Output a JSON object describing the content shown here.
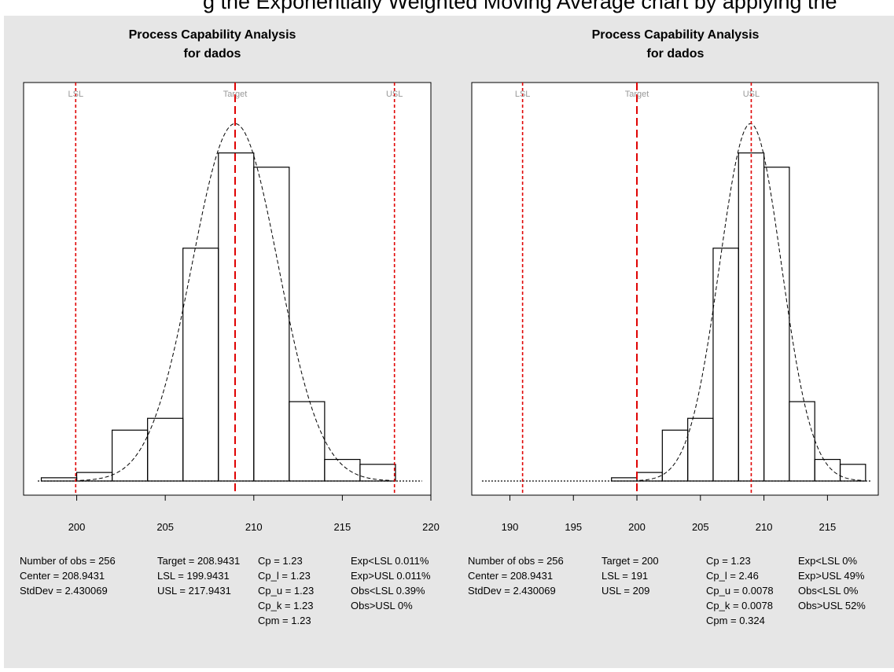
{
  "caption": "g the Exponentially Weighted Moving Average chart by applying the",
  "colors": {
    "background": "#e6e6e6",
    "plot_bg": "#ffffff",
    "spec_line": "#e00000",
    "bars": "#000000",
    "curve": "#000000"
  },
  "chart_data": [
    {
      "type": "bar",
      "title": "Process Capability Analysis",
      "subtitle": "for dados",
      "xlim": [
        197,
        220
      ],
      "xticks": [
        200,
        205,
        210,
        215,
        220
      ],
      "bins": [
        [
          198,
          200
        ],
        [
          200,
          202
        ],
        [
          202,
          204
        ],
        [
          204,
          206
        ],
        [
          206,
          208
        ],
        [
          208,
          210
        ],
        [
          210,
          212
        ],
        [
          212,
          214
        ],
        [
          214,
          216
        ],
        [
          216,
          218
        ]
      ],
      "values": [
        0.008,
        0.021,
        0.125,
        0.154,
        0.572,
        0.806,
        0.771,
        0.195,
        0.053,
        0.041
      ],
      "ylim": [
        0,
        0.95
      ],
      "normal_curve": {
        "mean": 208.9431,
        "sd": 2.430069
      },
      "spec_lines": [
        {
          "label": "LSL",
          "value": 199.9431
        },
        {
          "label": "Target",
          "value": 208.9431
        },
        {
          "label": "USL",
          "value": 217.9431
        }
      ],
      "stats": [
        [
          "Number of obs = 256",
          "Center = 208.9431",
          "StdDev = 2.430069"
        ],
        [
          "Target = 208.9431",
          "LSL = 199.9431",
          "USL = 217.9431"
        ],
        [
          "Cp    = 1.23",
          "Cp_l  = 1.23",
          "Cp_u  = 1.23",
          "Cp_k  = 1.23",
          "Cpm   = 1.23"
        ],
        [
          "Exp<LSL 0.011%",
          "Exp>USL 0.011%",
          "Obs<LSL 0.39%",
          "Obs>USL 0%"
        ]
      ]
    },
    {
      "type": "bar",
      "title": "Process Capability Analysis",
      "subtitle": "for dados",
      "xlim": [
        187,
        219
      ],
      "xticks": [
        190,
        195,
        200,
        205,
        210,
        215
      ],
      "bins": [
        [
          198,
          200
        ],
        [
          200,
          202
        ],
        [
          202,
          204
        ],
        [
          204,
          206
        ],
        [
          206,
          208
        ],
        [
          208,
          210
        ],
        [
          210,
          212
        ],
        [
          212,
          214
        ],
        [
          214,
          216
        ],
        [
          216,
          218
        ]
      ],
      "values": [
        0.008,
        0.021,
        0.125,
        0.154,
        0.572,
        0.806,
        0.771,
        0.195,
        0.053,
        0.041
      ],
      "ylim": [
        0,
        0.95
      ],
      "normal_curve": {
        "mean": 208.9431,
        "sd": 2.430069
      },
      "spec_lines": [
        {
          "label": "LSL",
          "value": 191
        },
        {
          "label": "Target",
          "value": 200
        },
        {
          "label": "USL",
          "value": 209
        }
      ],
      "stats": [
        [
          "Number of obs = 256",
          "Center = 208.9431",
          "StdDev = 2.430069"
        ],
        [
          "Target = 200",
          "LSL = 191",
          "USL = 209"
        ],
        [
          "Cp    = 1.23",
          "Cp_l  = 2.46",
          "Cp_u  = 0.0078",
          "Cp_k  = 0.0078",
          "Cpm   = 0.324"
        ],
        [
          "Exp<LSL 0%",
          "Exp>USL 49%",
          "Obs<LSL 0%",
          "Obs>USL 52%"
        ]
      ]
    }
  ]
}
